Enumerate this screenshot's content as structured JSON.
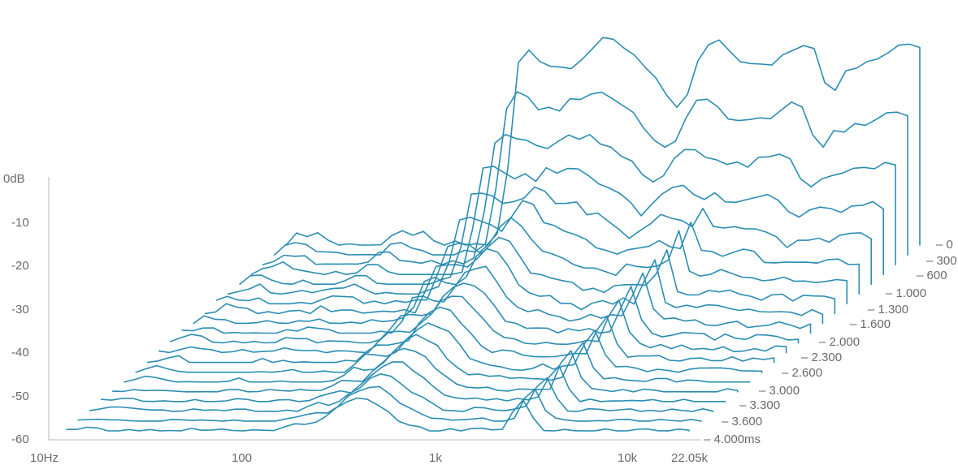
{
  "chart_data": {
    "type": "waterfall",
    "x_scale": "log",
    "x_ticks": [
      "10Hz",
      "100",
      "1k",
      "10k",
      "22.05k"
    ],
    "y_ticks": [
      "0dB",
      "-10",
      "-20",
      "-30",
      "-40",
      "-50",
      "-60"
    ],
    "ylim": [
      -60,
      0
    ],
    "time_labels": [
      "0",
      "300",
      "600",
      "1.000",
      "1.300",
      "1.600",
      "2.000",
      "2.300",
      "2.600",
      "3.000",
      "3.300",
      "3.600",
      "4.000ms"
    ],
    "line_color": "#2a8db3",
    "slice_count": 20,
    "slice_time_range_ms": [
      0,
      4000
    ]
  }
}
